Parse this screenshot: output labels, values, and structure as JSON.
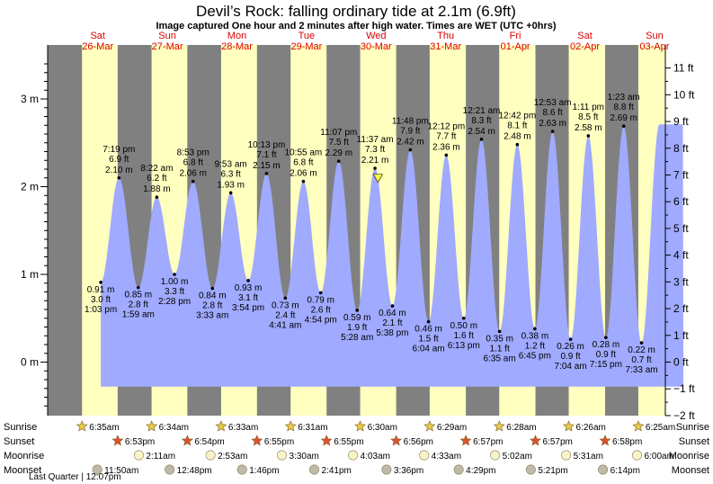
{
  "header": {
    "title": "Devil’s Rock: falling  ordinary tide at 2.1m (6.9ft)",
    "subtitle": "Image captured One hour and 2 minutes after high water. Times are WET (UTC +0hrs)"
  },
  "colors": {
    "tide_fill": "#a0aaff",
    "day_band": "#ffffc0",
    "night_band": "#808080",
    "day_label": "#dd0000",
    "sun_star": "#e8c84a",
    "sunset_star": "#e05030",
    "moon_disc": "#f8f4c8",
    "moon_set_disc": "#c0b8a8"
  },
  "chart_data": {
    "type": "area",
    "title": "Devil’s Rock: falling  ordinary tide at 2.1m (6.9ft)",
    "left_axis": {
      "unit": "m",
      "min": -0.6,
      "max": 3.6,
      "ticks": [
        0,
        1,
        2,
        3
      ],
      "tick_labels": [
        "0 m",
        "1 m",
        "2 m",
        "3 m"
      ]
    },
    "right_axis": {
      "unit": "ft",
      "ticks": [
        -2,
        -1,
        0,
        1,
        2,
        3,
        4,
        5,
        6,
        7,
        8,
        9,
        10,
        11
      ],
      "tick_labels": [
        "−2 ft",
        "−1 ft",
        "0 ft",
        "1 ft",
        "2 ft",
        "3 ft",
        "4 ft",
        "5 ft",
        "6 ft",
        "7 ft",
        "8 ft",
        "9 ft",
        "10 ft",
        "11 ft"
      ]
    },
    "x_range_hours": [
      0,
      214
    ],
    "days": [
      {
        "name": "Sat",
        "date": "26-Mar"
      },
      {
        "name": "Sun",
        "date": "27-Mar"
      },
      {
        "name": "Mon",
        "date": "28-Mar"
      },
      {
        "name": "Tue",
        "date": "29-Mar"
      },
      {
        "name": "Wed",
        "date": "30-Mar"
      },
      {
        "name": "Thu",
        "date": "31-Mar"
      },
      {
        "name": "Fri",
        "date": "01-Apr"
      },
      {
        "name": "Sat",
        "date": "02-Apr"
      },
      {
        "name": "Sun",
        "date": "03-Apr"
      }
    ],
    "sunrise_hours": [
      6.58,
      6.57,
      6.55,
      6.52,
      6.5,
      6.48,
      6.47,
      6.43,
      6.42
    ],
    "sunset_hours": [
      18.88,
      18.9,
      18.92,
      18.92,
      18.93,
      18.95,
      18.95,
      18.97,
      18.97
    ],
    "plot_start_hour": 13.05,
    "plot_end_hour": 214.0,
    "tides": [
      {
        "t": 13.05,
        "h_m": 0.91,
        "h_ft": "3.0 ft",
        "time": "1:03 pm",
        "label_m": "0.91 m",
        "type": "low"
      },
      {
        "t": 19.32,
        "h_m": 2.1,
        "h_ft": "6.9 ft",
        "time": "7:19 pm",
        "label_m": "2.10 m",
        "type": "high"
      },
      {
        "t": 25.98,
        "h_m": 0.85,
        "h_ft": "2.8 ft",
        "time": "1:59 am",
        "label_m": "0.85 m",
        "type": "low"
      },
      {
        "t": 32.37,
        "h_m": 1.88,
        "h_ft": "6.2 ft",
        "time": "8:22 am",
        "label_m": "1.88 m",
        "type": "high"
      },
      {
        "t": 38.47,
        "h_m": 1.0,
        "h_ft": "3.3 ft",
        "time": "2:28 pm",
        "label_m": "1.00 m",
        "type": "low"
      },
      {
        "t": 44.88,
        "h_m": 2.06,
        "h_ft": "6.8 ft",
        "time": "8:53 pm",
        "label_m": "2.06 m",
        "type": "high"
      },
      {
        "t": 51.55,
        "h_m": 0.84,
        "h_ft": "2.8 ft",
        "time": "3:33 am",
        "label_m": "0.84 m",
        "type": "low"
      },
      {
        "t": 57.88,
        "h_m": 1.93,
        "h_ft": "6.3 ft",
        "time": "9:53 am",
        "label_m": "1.93 m",
        "type": "high"
      },
      {
        "t": 63.9,
        "h_m": 0.93,
        "h_ft": "3.1 ft",
        "time": "3:54 pm",
        "label_m": "0.93 m",
        "type": "low"
      },
      {
        "t": 70.22,
        "h_m": 2.15,
        "h_ft": "7.1 ft",
        "time": "10:13 pm",
        "label_m": "2.15 m",
        "type": "high"
      },
      {
        "t": 76.68,
        "h_m": 0.73,
        "h_ft": "2.4 ft",
        "time": "4:41 am",
        "label_m": "0.73 m",
        "type": "low"
      },
      {
        "t": 82.92,
        "h_m": 2.06,
        "h_ft": "6.8 ft",
        "time": "10:55 am",
        "label_m": "2.06 m",
        "type": "high"
      },
      {
        "t": 88.9,
        "h_m": 0.79,
        "h_ft": "2.6 ft",
        "time": "4:54 pm",
        "label_m": "0.79 m",
        "type": "low"
      },
      {
        "t": 95.12,
        "h_m": 2.29,
        "h_ft": "7.5 ft",
        "time": "11:07 pm",
        "label_m": "2.29 m",
        "type": "high"
      },
      {
        "t": 101.47,
        "h_m": 0.59,
        "h_ft": "1.9 ft",
        "time": "5:28 am",
        "label_m": "0.59 m",
        "type": "low"
      },
      {
        "t": 107.62,
        "h_m": 2.21,
        "h_ft": "7.3 ft",
        "time": "11:37 am",
        "label_m": "2.21 m",
        "type": "high"
      },
      {
        "t": 113.63,
        "h_m": 0.64,
        "h_ft": "2.1 ft",
        "time": "5:38 pm",
        "label_m": "0.64 m",
        "type": "low"
      },
      {
        "t": 119.8,
        "h_m": 2.42,
        "h_ft": "7.9 ft",
        "time": "11:48 pm",
        "label_m": "2.42 m",
        "type": "high"
      },
      {
        "t": 126.07,
        "h_m": 0.46,
        "h_ft": "1.5 ft",
        "time": "6:04 am",
        "label_m": "0.46 m",
        "type": "low"
      },
      {
        "t": 132.2,
        "h_m": 2.36,
        "h_ft": "7.7 ft",
        "time": "12:12 pm",
        "label_m": "2.36 m",
        "type": "high"
      },
      {
        "t": 138.22,
        "h_m": 0.5,
        "h_ft": "1.6 ft",
        "time": "6:13 pm",
        "label_m": "0.50 m",
        "type": "low"
      },
      {
        "t": 144.35,
        "h_m": 2.54,
        "h_ft": "8.3 ft",
        "time": "12:21 am",
        "label_m": "2.54 m",
        "type": "high"
      },
      {
        "t": 150.58,
        "h_m": 0.35,
        "h_ft": "1.1 ft",
        "time": "6:35 am",
        "label_m": "0.35 m",
        "type": "low"
      },
      {
        "t": 156.7,
        "h_m": 2.48,
        "h_ft": "8.1 ft",
        "time": "12:42 pm",
        "label_m": "2.48 m",
        "type": "high"
      },
      {
        "t": 162.75,
        "h_m": 0.38,
        "h_ft": "1.2 ft",
        "time": "6:45 pm",
        "label_m": "0.38 m",
        "type": "low"
      },
      {
        "t": 168.88,
        "h_m": 2.63,
        "h_ft": "8.6 ft",
        "time": "12:53 am",
        "label_m": "2.63 m",
        "type": "high"
      },
      {
        "t": 175.07,
        "h_m": 0.26,
        "h_ft": "0.9 ft",
        "time": "7:04 am",
        "label_m": "0.26 m",
        "type": "low"
      },
      {
        "t": 181.18,
        "h_m": 2.58,
        "h_ft": "8.5 ft",
        "time": "1:11 pm",
        "label_m": "2.58 m",
        "type": "high"
      },
      {
        "t": 187.25,
        "h_m": 0.28,
        "h_ft": "0.9 ft",
        "time": "7:15 pm",
        "label_m": "0.28 m",
        "type": "low"
      },
      {
        "t": 193.38,
        "h_m": 2.69,
        "h_ft": "8.8 ft",
        "time": "1:23 am",
        "label_m": "2.69 m",
        "type": "high"
      },
      {
        "t": 199.55,
        "h_m": 0.22,
        "h_ft": "0.7 ft",
        "time": "7:33 am",
        "label_m": "0.22 m",
        "type": "low"
      }
    ],
    "current_marker": {
      "t": 108.65,
      "h_m": 2.1
    }
  },
  "events": {
    "row_labels": {
      "sunrise": "Sunrise",
      "sunset": "Sunset",
      "moonrise": "Moonrise",
      "moonset": "Moonset"
    },
    "sunrise": [
      {
        "t": 6.58,
        "label": "6:35am"
      },
      {
        "t": 30.57,
        "label": "6:34am"
      },
      {
        "t": 54.55,
        "label": "6:33am"
      },
      {
        "t": 78.52,
        "label": "6:31am"
      },
      {
        "t": 102.5,
        "label": "6:30am"
      },
      {
        "t": 126.48,
        "label": "6:29am"
      },
      {
        "t": 150.47,
        "label": "6:28am"
      },
      {
        "t": 174.43,
        "label": "6:26am"
      },
      {
        "t": 198.42,
        "label": "6:25am"
      }
    ],
    "sunset": [
      {
        "t": 18.88,
        "label": "6:53pm"
      },
      {
        "t": 42.9,
        "label": "6:54pm"
      },
      {
        "t": 66.92,
        "label": "6:55pm"
      },
      {
        "t": 90.92,
        "label": "6:55pm"
      },
      {
        "t": 114.93,
        "label": "6:56pm"
      },
      {
        "t": 138.95,
        "label": "6:57pm"
      },
      {
        "t": 162.95,
        "label": "6:57pm"
      },
      {
        "t": 186.97,
        "label": "6:58pm"
      }
    ],
    "moonrise": [
      {
        "t": 26.18,
        "label": "2:11am"
      },
      {
        "t": 50.88,
        "label": "2:53am"
      },
      {
        "t": 75.5,
        "label": "3:30am"
      },
      {
        "t": 100.05,
        "label": "4:03am"
      },
      {
        "t": 124.55,
        "label": "4:33am"
      },
      {
        "t": 149.03,
        "label": "5:02am"
      },
      {
        "t": 173.52,
        "label": "5:31am"
      },
      {
        "t": 198.0,
        "label": "6:00am"
      }
    ],
    "moonset": [
      {
        "t": 11.83,
        "label": "11:50am"
      },
      {
        "t": 36.8,
        "label": "12:48pm"
      },
      {
        "t": 61.77,
        "label": "1:46pm"
      },
      {
        "t": 86.68,
        "label": "2:41pm"
      },
      {
        "t": 111.6,
        "label": "3:36pm"
      },
      {
        "t": 136.48,
        "label": "4:29pm"
      },
      {
        "t": 161.35,
        "label": "5:21pm"
      },
      {
        "t": 186.23,
        "label": "6:14pm"
      }
    ],
    "moon_phase": "Last Quarter | 12:07pm"
  }
}
